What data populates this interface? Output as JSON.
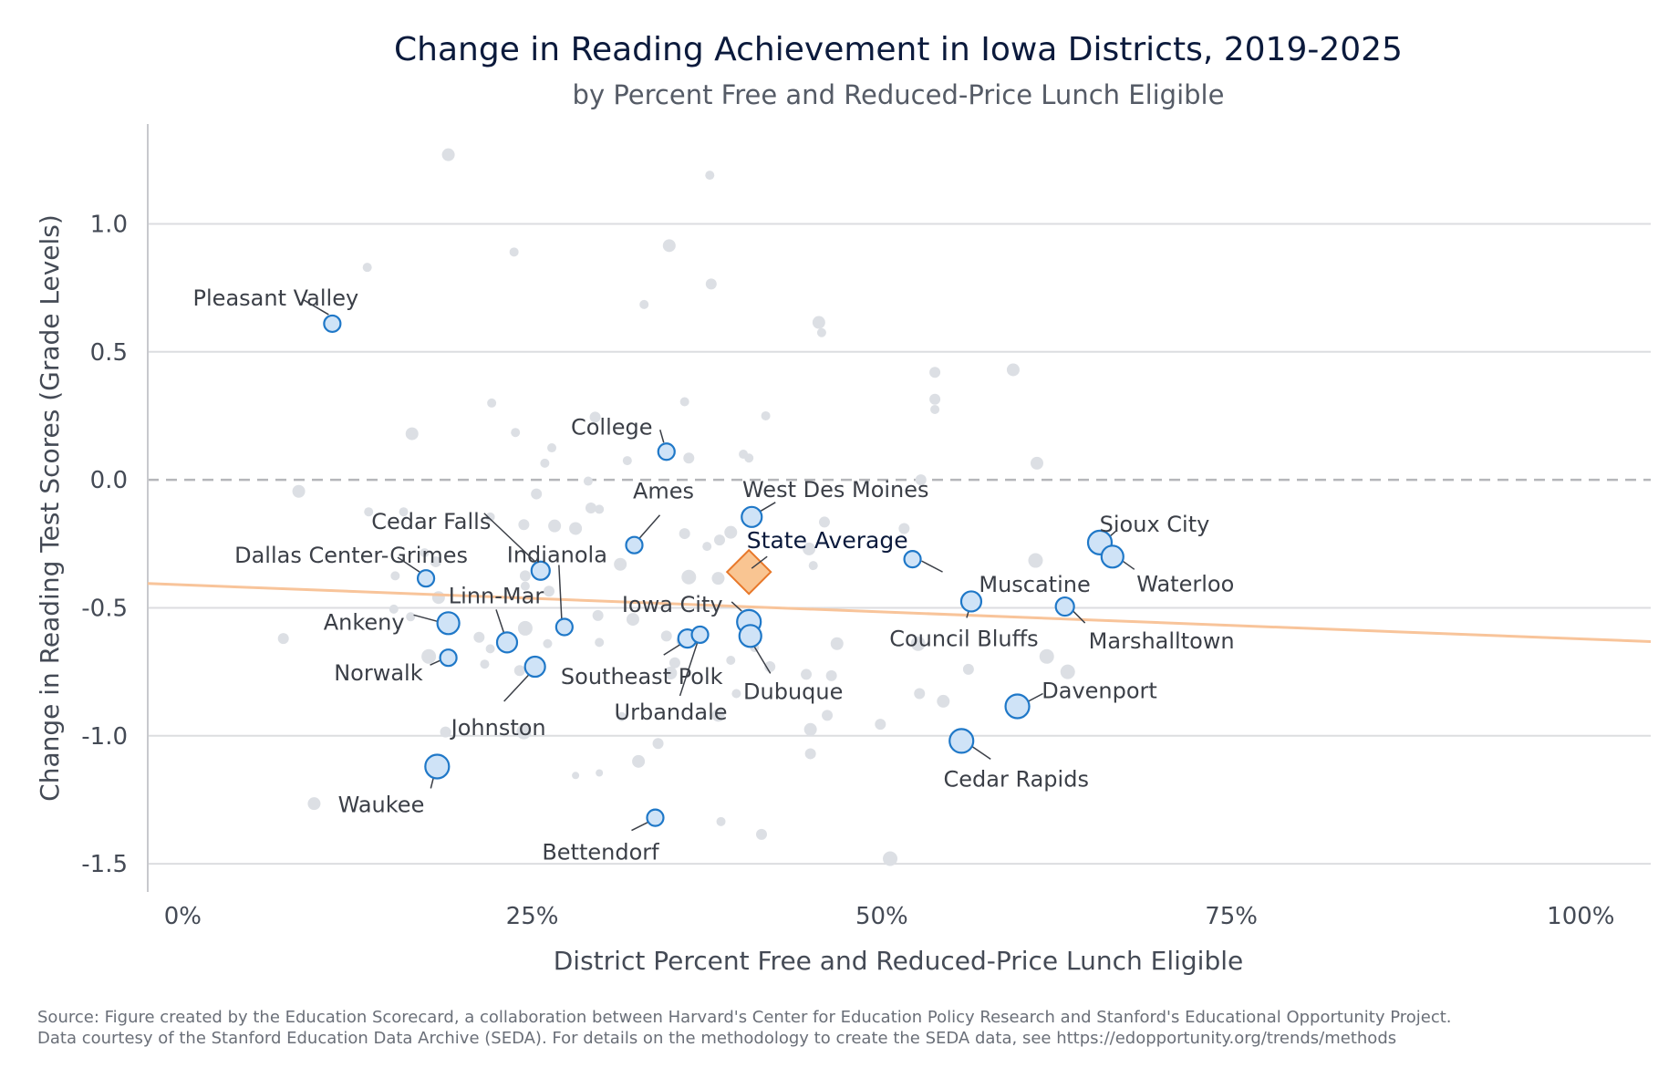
{
  "chart_data": {
    "type": "scatter",
    "title": "Change in Reading Achievement in Iowa Districts, 2019-2025",
    "subtitle": "by Percent Free and Reduced-Price Lunch Eligible",
    "xlabel": "District Percent Free and Reduced-Price Lunch Eligible",
    "ylabel": "Change in Reading Test Scores (Grade Levels)",
    "xlim": [
      -2.5,
      105
    ],
    "ylim": [
      -1.61,
      1.39
    ],
    "x_ticks": [
      0,
      25,
      50,
      75,
      100
    ],
    "x_tick_labels": [
      "0%",
      "25%",
      "50%",
      "75%",
      "100%"
    ],
    "y_ticks": [
      1.0,
      0.5,
      0.0,
      -0.5,
      -1.0,
      -1.5
    ],
    "y_tick_labels": [
      "1.0",
      "0.5",
      "0.0",
      "-0.5",
      "-1.0",
      "-1.5"
    ],
    "grid": "horizontal",
    "reference_line": {
      "y": 0,
      "style": "dashed"
    },
    "trend_line": {
      "x": [
        -2.5,
        105
      ],
      "y": [
        -0.405,
        -0.632
      ],
      "color": "#f8c49a"
    },
    "colors": {
      "highlight_fill": "#cfe3f7",
      "highlight_stroke": "#1f78c8",
      "background_points": "#dcdfe4",
      "state_fill": "#f9c592",
      "state_stroke": "#e8782a"
    },
    "state_average": {
      "label": "State Average",
      "x": 40.5,
      "y": -0.36
    },
    "highlighted_districts": [
      {
        "name": "Pleasant Valley",
        "x": 10.7,
        "y": 0.61,
        "size": 9
      },
      {
        "name": "College",
        "x": 34.6,
        "y": 0.11,
        "size": 9
      },
      {
        "name": "West Des Moines",
        "x": 40.7,
        "y": -0.145,
        "size": 11
      },
      {
        "name": "Ames",
        "x": 32.3,
        "y": -0.255,
        "size": 9
      },
      {
        "name": "Cedar Falls",
        "x": 25.6,
        "y": -0.355,
        "size": 10
      },
      {
        "name": "Dallas Center-Grimes",
        "x": 17.4,
        "y": -0.385,
        "size": 9
      },
      {
        "name": "Indianola",
        "x": 27.3,
        "y": -0.575,
        "size": 9
      },
      {
        "name": "Linn-Mar",
        "x": 23.2,
        "y": -0.635,
        "size": 11
      },
      {
        "name": "Ankeny",
        "x": 19.0,
        "y": -0.56,
        "size": 12
      },
      {
        "name": "Norwalk",
        "x": 19.0,
        "y": -0.695,
        "size": 9
      },
      {
        "name": "Johnston",
        "x": 25.2,
        "y": -0.73,
        "size": 11
      },
      {
        "name": "Iowa City",
        "x": 40.5,
        "y": -0.555,
        "size": 13
      },
      {
        "name": "Southeast Polk",
        "x": 36.1,
        "y": -0.62,
        "size": 10
      },
      {
        "name": "Urbandale",
        "x": 37.0,
        "y": -0.605,
        "size": 9
      },
      {
        "name": "Dubuque",
        "x": 40.6,
        "y": -0.61,
        "size": 12
      },
      {
        "name": "Muscatine",
        "x": 52.2,
        "y": -0.31,
        "size": 9
      },
      {
        "name": "Council Bluffs",
        "x": 56.4,
        "y": -0.475,
        "size": 11
      },
      {
        "name": "Sioux City",
        "x": 65.6,
        "y": -0.245,
        "size": 13
      },
      {
        "name": "Waterloo",
        "x": 66.5,
        "y": -0.3,
        "size": 12
      },
      {
        "name": "Marshalltown",
        "x": 63.1,
        "y": -0.495,
        "size": 10
      },
      {
        "name": "Davenport",
        "x": 59.7,
        "y": -0.885,
        "size": 13
      },
      {
        "name": "Cedar Rapids",
        "x": 55.7,
        "y": -1.02,
        "size": 13
      },
      {
        "name": "Waukee",
        "x": 18.2,
        "y": -1.12,
        "size": 13
      },
      {
        "name": "Bettendorf",
        "x": 33.8,
        "y": -1.32,
        "size": 9
      }
    ],
    "other_districts": [
      [
        19.0,
        1.27,
        7
      ],
      [
        37.7,
        1.19,
        5
      ],
      [
        34.8,
        0.915,
        7
      ],
      [
        23.7,
        0.89,
        5
      ],
      [
        13.2,
        0.83,
        5
      ],
      [
        37.8,
        0.765,
        6
      ],
      [
        33.0,
        0.685,
        5
      ],
      [
        45.5,
        0.615,
        7
      ],
      [
        45.7,
        0.575,
        5
      ],
      [
        59.4,
        0.43,
        7
      ],
      [
        53.8,
        0.42,
        6
      ],
      [
        53.8,
        0.315,
        6
      ],
      [
        53.8,
        0.275,
        5
      ],
      [
        22.1,
        0.3,
        5
      ],
      [
        35.9,
        0.305,
        5
      ],
      [
        41.7,
        0.25,
        5
      ],
      [
        29.5,
        0.245,
        6
      ],
      [
        16.4,
        0.18,
        7
      ],
      [
        23.8,
        0.185,
        5
      ],
      [
        26.4,
        0.125,
        5
      ],
      [
        40.1,
        0.1,
        5
      ],
      [
        40.5,
        0.085,
        5
      ],
      [
        36.2,
        0.085,
        6
      ],
      [
        31.8,
        0.075,
        5
      ],
      [
        25.9,
        0.065,
        5
      ],
      [
        61.1,
        0.065,
        7
      ],
      [
        52.8,
        0.0,
        6
      ],
      [
        29.0,
        -0.005,
        5
      ],
      [
        8.3,
        -0.045,
        7
      ],
      [
        25.3,
        -0.055,
        6
      ],
      [
        29.2,
        -0.11,
        6
      ],
      [
        29.8,
        -0.115,
        5
      ],
      [
        13.3,
        -0.125,
        5
      ],
      [
        15.8,
        -0.125,
        5
      ],
      [
        22.0,
        -0.145,
        5
      ],
      [
        24.4,
        -0.175,
        6
      ],
      [
        26.6,
        -0.18,
        7
      ],
      [
        28.1,
        -0.19,
        7
      ],
      [
        45.9,
        -0.165,
        6
      ],
      [
        35.9,
        -0.21,
        6
      ],
      [
        39.2,
        -0.205,
        7
      ],
      [
        38.4,
        -0.235,
        6
      ],
      [
        37.5,
        -0.26,
        5
      ],
      [
        51.6,
        -0.19,
        6
      ],
      [
        44.8,
        -0.27,
        7
      ],
      [
        45.1,
        -0.335,
        5
      ],
      [
        31.3,
        -0.33,
        7
      ],
      [
        61.0,
        -0.315,
        8
      ],
      [
        17.3,
        -0.285,
        5
      ],
      [
        18.1,
        -0.32,
        6
      ],
      [
        36.2,
        -0.38,
        8
      ],
      [
        38.3,
        -0.385,
        7
      ],
      [
        24.5,
        -0.375,
        6
      ],
      [
        15.2,
        -0.375,
        5
      ],
      [
        24.5,
        -0.415,
        5
      ],
      [
        26.2,
        -0.435,
        6
      ],
      [
        18.3,
        -0.46,
        7
      ],
      [
        15.1,
        -0.505,
        5
      ],
      [
        32.2,
        -0.545,
        7
      ],
      [
        29.7,
        -0.53,
        6
      ],
      [
        16.3,
        -0.535,
        5
      ],
      [
        24.5,
        -0.58,
        8
      ],
      [
        21.2,
        -0.615,
        6
      ],
      [
        7.2,
        -0.62,
        6
      ],
      [
        34.6,
        -0.61,
        6
      ],
      [
        35.7,
        -0.63,
        6
      ],
      [
        29.8,
        -0.635,
        5
      ],
      [
        26.1,
        -0.64,
        5
      ],
      [
        46.8,
        -0.64,
        7
      ],
      [
        52.6,
        -0.64,
        8
      ],
      [
        17.6,
        -0.69,
        8
      ],
      [
        22.0,
        -0.66,
        5
      ],
      [
        61.8,
        -0.69,
        8
      ],
      [
        40.9,
        -0.655,
        5
      ],
      [
        35.2,
        -0.715,
        6
      ],
      [
        39.2,
        -0.705,
        5
      ],
      [
        21.6,
        -0.72,
        5
      ],
      [
        24.1,
        -0.745,
        6
      ],
      [
        34.9,
        -0.755,
        7
      ],
      [
        42.0,
        -0.73,
        6
      ],
      [
        56.2,
        -0.74,
        6
      ],
      [
        63.3,
        -0.75,
        8
      ],
      [
        44.6,
        -0.76,
        6
      ],
      [
        46.4,
        -0.765,
        6
      ],
      [
        39.6,
        -0.835,
        5
      ],
      [
        52.7,
        -0.835,
        6
      ],
      [
        54.4,
        -0.865,
        7
      ],
      [
        31.4,
        -0.925,
        5
      ],
      [
        38.3,
        -0.92,
        7
      ],
      [
        46.1,
        -0.92,
        6
      ],
      [
        49.9,
        -0.955,
        6
      ],
      [
        44.9,
        -0.975,
        7
      ],
      [
        24.4,
        -0.985,
        8
      ],
      [
        18.8,
        -0.985,
        6
      ],
      [
        34.0,
        -1.03,
        6
      ],
      [
        44.9,
        -1.07,
        6
      ],
      [
        32.6,
        -1.1,
        7
      ],
      [
        28.1,
        -1.155,
        4
      ],
      [
        29.8,
        -1.145,
        4
      ],
      [
        9.4,
        -1.265,
        7
      ],
      [
        38.5,
        -1.335,
        5
      ],
      [
        41.4,
        -1.385,
        6
      ],
      [
        50.6,
        -1.48,
        8
      ]
    ]
  },
  "source_lines": [
    "Source: Figure created by the Education Scorecard, a collaboration between Harvard's Center for Education Policy Research and Stanford's Educational Opportunity Project.",
    "Data courtesy of the Stanford Education Data Archive (SEDA). For details on the methodology to create the SEDA data, see https://edopportunity.org/trends/methods"
  ]
}
